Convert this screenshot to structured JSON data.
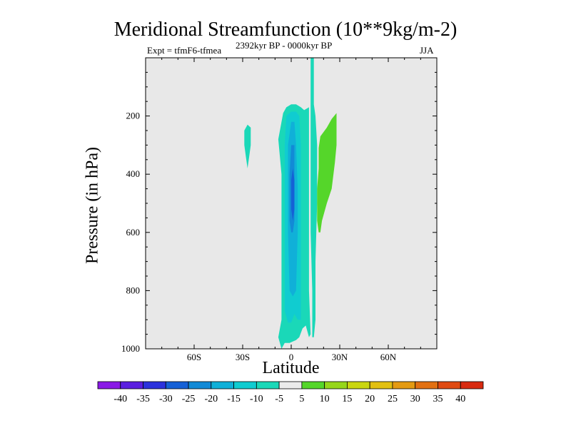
{
  "chart_data": {
    "type": "contour",
    "title": "Meridional Streamfunction (10**9kg/m-2)",
    "subtitle_left": "Expt = tfmF6-tfmea",
    "subtitle_center": "2392kyr BP - 0000kyr BP",
    "subtitle_right": "JJA",
    "xlabel": "Latitude",
    "ylabel": "Pressure (in hPa)",
    "xlim": [
      -90,
      90
    ],
    "ylim": [
      1000,
      0
    ],
    "x_ticks": [
      {
        "value": -60,
        "label": "60S"
      },
      {
        "value": -30,
        "label": "30S"
      },
      {
        "value": 0,
        "label": "0"
      },
      {
        "value": 30,
        "label": "30N"
      },
      {
        "value": 60,
        "label": "60N"
      }
    ],
    "y_ticks": [
      {
        "value": 200,
        "label": "200"
      },
      {
        "value": 400,
        "label": "400"
      },
      {
        "value": 600,
        "label": "600"
      },
      {
        "value": 800,
        "label": "800"
      },
      {
        "value": 1000,
        "label": "1000"
      }
    ],
    "background_color": "#e8e8e8",
    "colorbar": {
      "levels": [
        -40,
        -35,
        -30,
        -25,
        -20,
        -15,
        -10,
        -5,
        5,
        10,
        15,
        20,
        25,
        30,
        35,
        40
      ],
      "labels": [
        "-40",
        "-35",
        "-30",
        "-25",
        "-20",
        "-15",
        "-10",
        "-5",
        "5",
        "10",
        "15",
        "20",
        "25",
        "30",
        "35",
        "40"
      ],
      "colors": [
        "#8a1ae6",
        "#5a1ee0",
        "#2c32dc",
        "#1560d6",
        "#128ad6",
        "#10b0d8",
        "#10ccd0",
        "#1ad8b8",
        "#ebebeb",
        "#55d62a",
        "#96d61a",
        "#cad610",
        "#e2c012",
        "#e49a12",
        "#e27012",
        "#e04a12",
        "#d82a10"
      ]
    },
    "regions": [
      {
        "name": "negative-cell-outer",
        "level": "-10 to -5",
        "color": "#1ad8b8",
        "points": [
          [
            -6,
            1000
          ],
          [
            -8,
            960
          ],
          [
            -6,
            900
          ],
          [
            -6,
            800
          ],
          [
            -6,
            600
          ],
          [
            -6,
            400
          ],
          [
            -8,
            280
          ],
          [
            -5,
            190
          ],
          [
            -3,
            170
          ],
          [
            0,
            160
          ],
          [
            3,
            160
          ],
          [
            6,
            170
          ],
          [
            8,
            180
          ],
          [
            11,
            170
          ],
          [
            11,
            300
          ],
          [
            11,
            600
          ],
          [
            11,
            800
          ],
          [
            12,
            950
          ],
          [
            11,
            960
          ],
          [
            9,
            920
          ],
          [
            7,
            930
          ],
          [
            5,
            960
          ],
          [
            3,
            970
          ],
          [
            -1,
            980
          ],
          [
            -4,
            980
          ]
        ]
      },
      {
        "name": "negative-cell-2",
        "level": "-15 to -10",
        "color": "#10ccd0",
        "points": [
          [
            -4,
            870
          ],
          [
            -4,
            700
          ],
          [
            -4,
            500
          ],
          [
            -4,
            300
          ],
          [
            -3,
            200
          ],
          [
            0,
            185
          ],
          [
            3,
            185
          ],
          [
            5,
            200
          ],
          [
            6,
            300
          ],
          [
            6,
            500
          ],
          [
            6,
            700
          ],
          [
            6,
            900
          ],
          [
            4,
            900
          ],
          [
            2,
            880
          ],
          [
            0,
            910
          ],
          [
            -2,
            910
          ]
        ]
      },
      {
        "name": "negative-cell-3",
        "level": "-20 to -15",
        "color": "#10b0d8",
        "points": [
          [
            -2,
            600
          ],
          [
            -2,
            450
          ],
          [
            -2,
            300
          ],
          [
            0,
            220
          ],
          [
            2,
            220
          ],
          [
            3,
            300
          ],
          [
            4,
            450
          ],
          [
            4,
            600
          ],
          [
            3,
            800
          ],
          [
            1,
            820
          ],
          [
            -1,
            800
          ]
        ]
      },
      {
        "name": "negative-cell-4",
        "level": "-25 to -20",
        "color": "#128ad6",
        "points": [
          [
            -1,
            560
          ],
          [
            -1,
            400
          ],
          [
            0,
            300
          ],
          [
            2,
            300
          ],
          [
            2,
            400
          ],
          [
            2,
            560
          ],
          [
            1,
            600
          ],
          [
            0,
            600
          ]
        ]
      },
      {
        "name": "negative-cell-core",
        "level": "-30 to -25",
        "color": "#1560d6",
        "points": [
          [
            0,
            520
          ],
          [
            0,
            420
          ],
          [
            1,
            380
          ],
          [
            2,
            420
          ],
          [
            2,
            520
          ],
          [
            1,
            560
          ]
        ]
      },
      {
        "name": "vertical-plume",
        "level": "-10 to -5",
        "color": "#1ad8b8",
        "points": [
          [
            12,
            0
          ],
          [
            14,
            0
          ],
          [
            14,
            160
          ],
          [
            15,
            200
          ],
          [
            16,
            300
          ],
          [
            16,
            500
          ],
          [
            15,
            700
          ],
          [
            15,
            900
          ],
          [
            14,
            960
          ],
          [
            13,
            960
          ],
          [
            13,
            800
          ],
          [
            12,
            600
          ],
          [
            12,
            400
          ],
          [
            12,
            250
          ],
          [
            12,
            160
          ]
        ]
      },
      {
        "name": "small-negative-patch",
        "level": "-10 to -5",
        "color": "#1ad8b8",
        "points": [
          [
            -29,
            250
          ],
          [
            -27,
            230
          ],
          [
            -25,
            240
          ],
          [
            -25,
            300
          ],
          [
            -26,
            340
          ],
          [
            -27,
            380
          ],
          [
            -28,
            340
          ],
          [
            -29,
            300
          ]
        ]
      },
      {
        "name": "positive-patch",
        "level": "5 to 10",
        "color": "#55d62a",
        "points": [
          [
            17,
            310
          ],
          [
            18,
            270
          ],
          [
            22,
            240
          ],
          [
            25,
            210
          ],
          [
            28,
            190
          ],
          [
            28,
            230
          ],
          [
            28,
            300
          ],
          [
            27,
            360
          ],
          [
            25,
            450
          ],
          [
            22,
            500
          ],
          [
            19,
            560
          ],
          [
            18,
            600
          ],
          [
            17,
            600
          ],
          [
            16,
            560
          ],
          [
            16,
            450
          ],
          [
            17,
            380
          ]
        ]
      }
    ]
  }
}
